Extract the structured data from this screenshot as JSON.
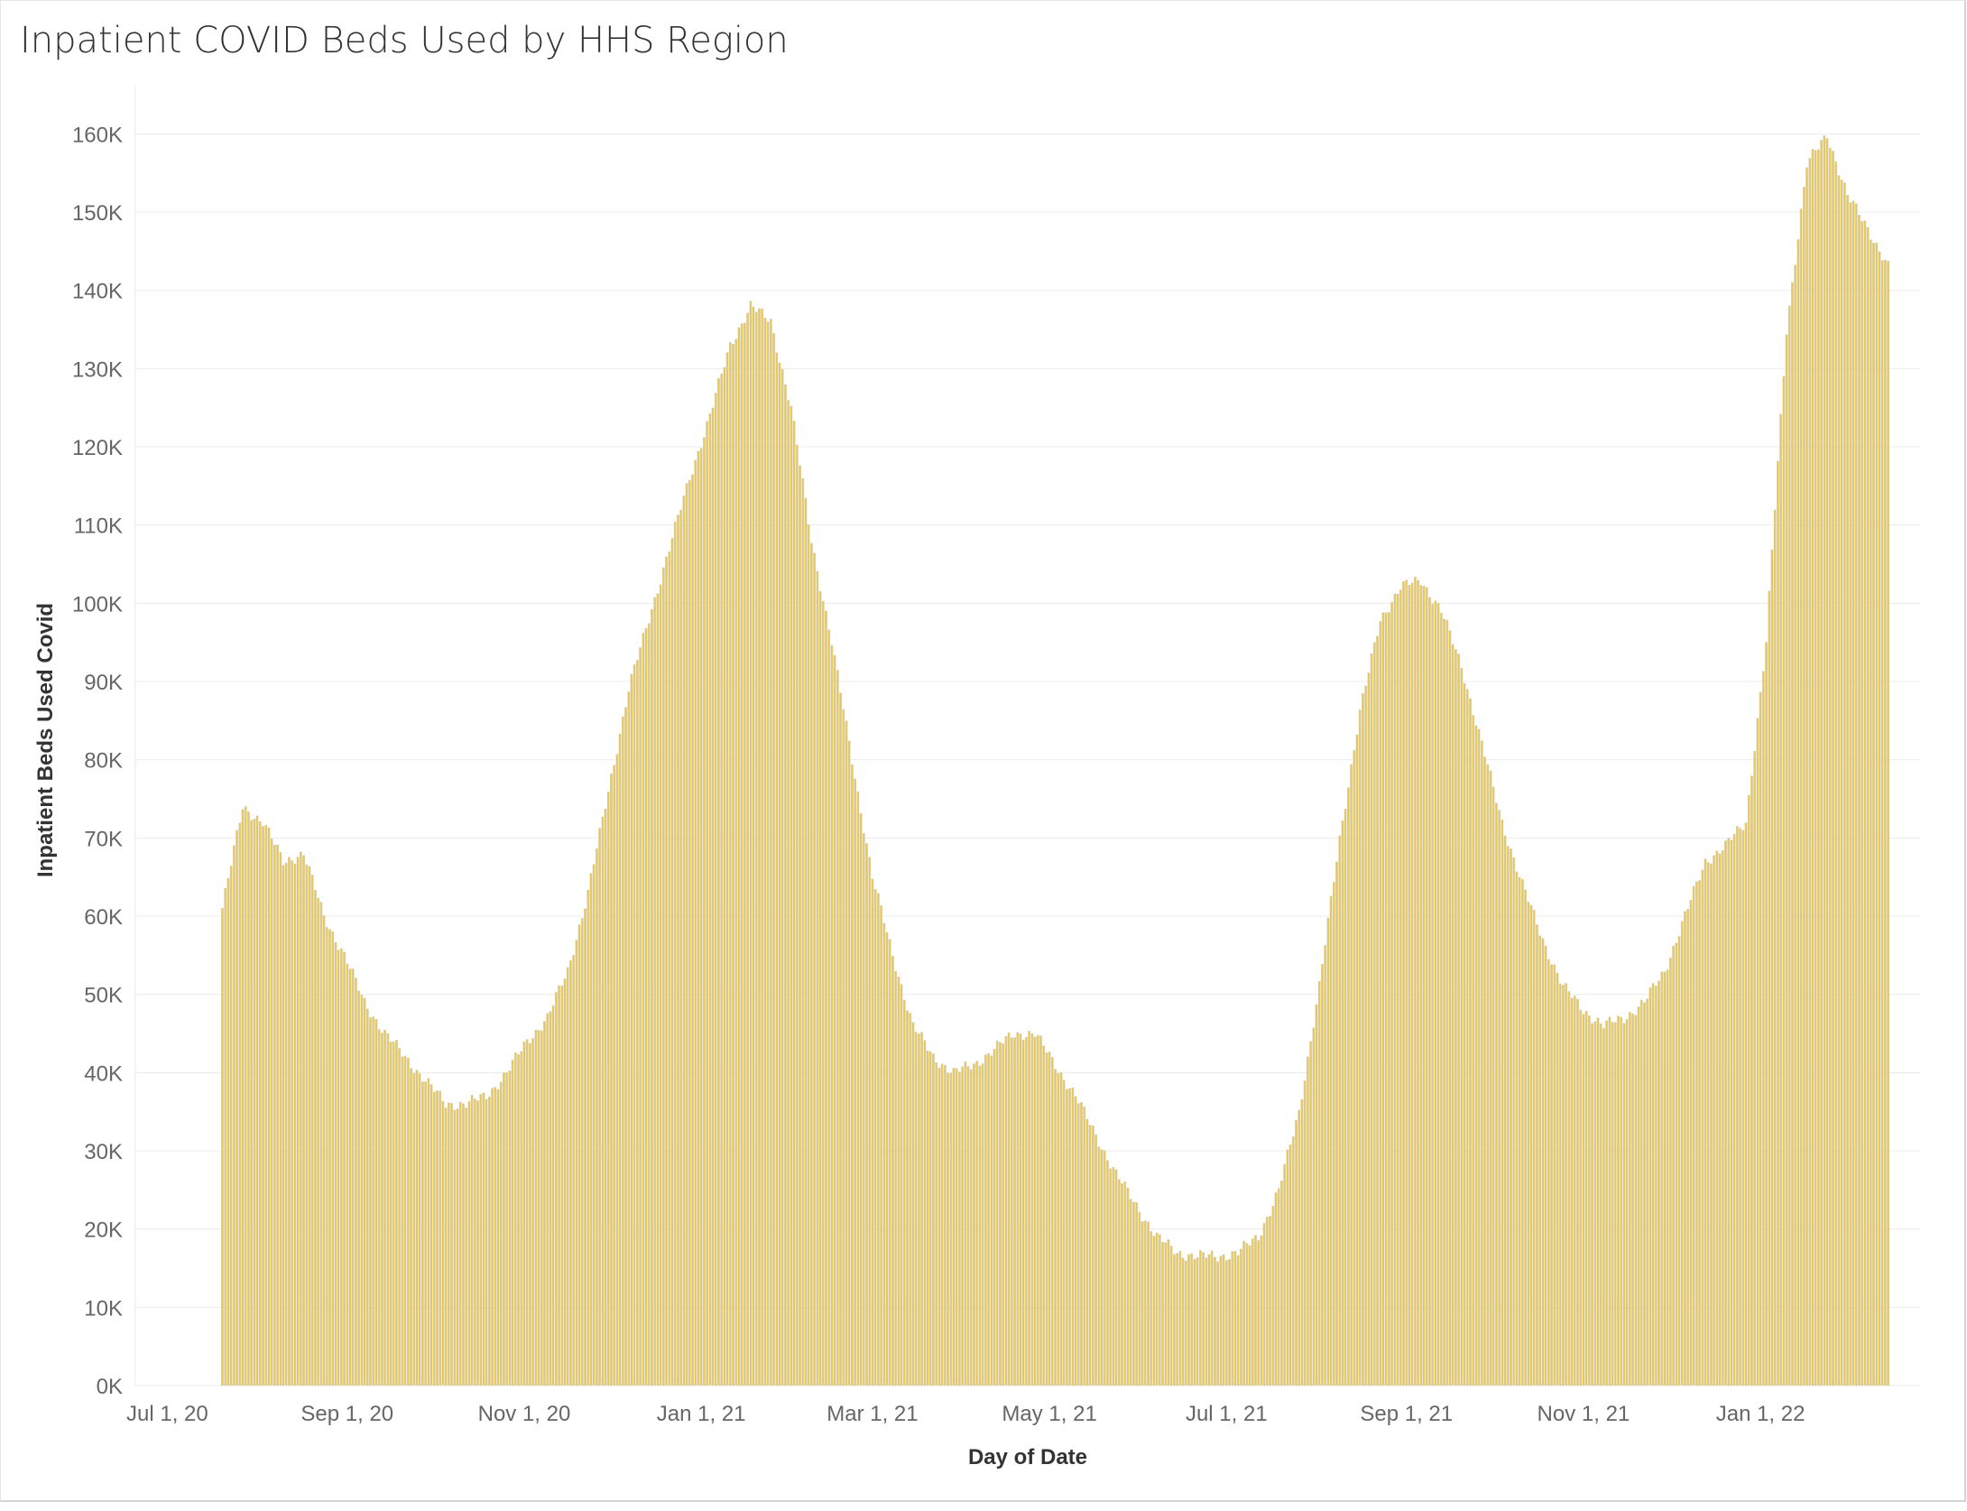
{
  "chart_data": {
    "type": "bar",
    "title": "Inpatient COVID Beds Used by HHS Region",
    "xlabel": "Day of Date",
    "ylabel": "Inpatient Beds Used Covid",
    "x_ticks": [
      "Jul 1, 20",
      "Sep 1, 20",
      "Nov 1, 20",
      "Jan 1, 21",
      "Mar 1, 21",
      "May 1, 21",
      "Jul 1, 21",
      "Sep 1, 21",
      "Nov 1, 21",
      "Jan 1, 22"
    ],
    "y_ticks": [
      "0K",
      "10K",
      "20K",
      "30K",
      "40K",
      "50K",
      "60K",
      "70K",
      "80K",
      "90K",
      "100K",
      "110K",
      "120K",
      "130K",
      "140K",
      "150K",
      "160K"
    ],
    "ylim": [
      0,
      165000
    ],
    "x_range": [
      "2020-06-20",
      "2022-02-25"
    ],
    "data_start": "2020-07-20",
    "data_end": "2022-02-14",
    "bar_color": "#e8c85a",
    "bar_edge_color": "#d0d0d0",
    "grid": true,
    "series": [
      {
        "values_description": "daily inpatient beds used (values in thousands at weekly resolution)",
        "weekly_dates": [
          "2020-07-20",
          "2020-07-27",
          "2020-08-03",
          "2020-08-10",
          "2020-08-17",
          "2020-08-24",
          "2020-08-31",
          "2020-09-07",
          "2020-09-14",
          "2020-09-21",
          "2020-09-28",
          "2020-10-05",
          "2020-10-12",
          "2020-10-19",
          "2020-10-26",
          "2020-11-02",
          "2020-11-09",
          "2020-11-16",
          "2020-11-23",
          "2020-11-30",
          "2020-12-07",
          "2020-12-14",
          "2020-12-21",
          "2020-12-28",
          "2021-01-04",
          "2021-01-11",
          "2021-01-18",
          "2021-01-25",
          "2021-02-01",
          "2021-02-08",
          "2021-02-15",
          "2021-02-22",
          "2021-03-01",
          "2021-03-08",
          "2021-03-15",
          "2021-03-22",
          "2021-03-29",
          "2021-04-05",
          "2021-04-12",
          "2021-04-19",
          "2021-04-26",
          "2021-05-03",
          "2021-05-10",
          "2021-05-17",
          "2021-05-24",
          "2021-05-31",
          "2021-06-07",
          "2021-06-14",
          "2021-06-21",
          "2021-06-28",
          "2021-07-05",
          "2021-07-12",
          "2021-07-19",
          "2021-07-26",
          "2021-08-02",
          "2021-08-09",
          "2021-08-16",
          "2021-08-23",
          "2021-08-30",
          "2021-09-06",
          "2021-09-13",
          "2021-09-20",
          "2021-09-27",
          "2021-10-04",
          "2021-10-11",
          "2021-10-18",
          "2021-10-25",
          "2021-11-01",
          "2021-11-08",
          "2021-11-15",
          "2021-11-22",
          "2021-11-29",
          "2021-12-06",
          "2021-12-13",
          "2021-12-20",
          "2021-12-27",
          "2022-01-03",
          "2022-01-10",
          "2022-01-17",
          "2022-01-24",
          "2022-01-31",
          "2022-02-07",
          "2022-02-14"
        ],
        "values_k": [
          61,
          74,
          72,
          67,
          68,
          60,
          55,
          49,
          45,
          42,
          39,
          36,
          36,
          37,
          40,
          44,
          47,
          53,
          63,
          76,
          89,
          98,
          107,
          116,
          124,
          133,
          138,
          136,
          125,
          108,
          95,
          80,
          65,
          55,
          46,
          42,
          40,
          41,
          43,
          45,
          45,
          41,
          37,
          32,
          27,
          23,
          19,
          17,
          16.5,
          16.5,
          17,
          19,
          25,
          35,
          51,
          70,
          86,
          98,
          102,
          103,
          99,
          92,
          82,
          72,
          64,
          57,
          51,
          48,
          46,
          47,
          49,
          53,
          60,
          67,
          69,
          72,
          95,
          135,
          156,
          160,
          152,
          148,
          143
        ]
      }
    ]
  }
}
